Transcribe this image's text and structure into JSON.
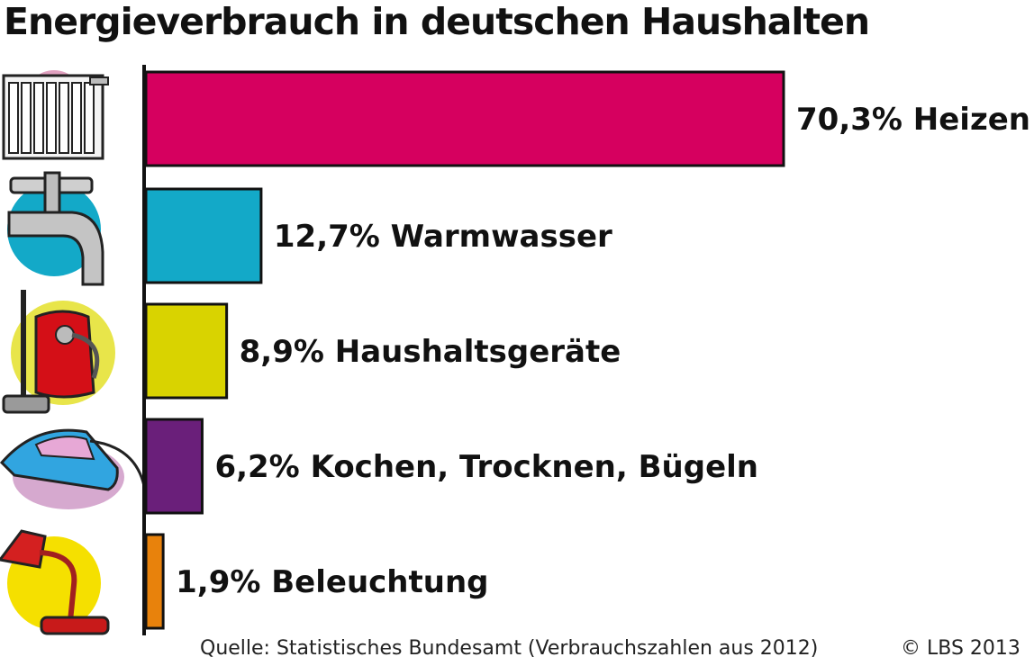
{
  "chart_data": {
    "type": "bar",
    "orientation": "horizontal",
    "title": "Energieverbrauch in deutschen Haushalten",
    "categories": [
      "Heizen",
      "Warmwasser",
      "Haushaltsgeräte",
      "Kochen, Trocknen, Bügeln",
      "Beleuchtung"
    ],
    "values": [
      70.3,
      12.7,
      8.9,
      6.2,
      1.9
    ],
    "unit": "%",
    "data_labels": [
      "70,3% Heizen",
      "12,7% Warmwasser",
      "8,9% Haushaltsgeräte",
      "6,2% Kochen, Trocknen, Bügeln",
      "1,9% Beleuchtung"
    ],
    "colors": [
      "#d6005f",
      "#13a9c8",
      "#d9d300",
      "#6a1f7a",
      "#e8820c"
    ],
    "icons": [
      "radiator-icon",
      "water-tap-icon",
      "vacuum-cleaner-icon",
      "iron-icon",
      "desk-lamp-icon"
    ],
    "icon_background_colors": [
      "#e0a0bf",
      "#13a9c8",
      "#e8e54a",
      "#d6a9cf",
      "#f5e000"
    ],
    "grid": false,
    "legend": "none"
  },
  "footer": {
    "source": "Quelle: Statistisches Bundesamt (Verbrauchszahlen aus 2012)",
    "copyright": "© LBS 2013"
  }
}
